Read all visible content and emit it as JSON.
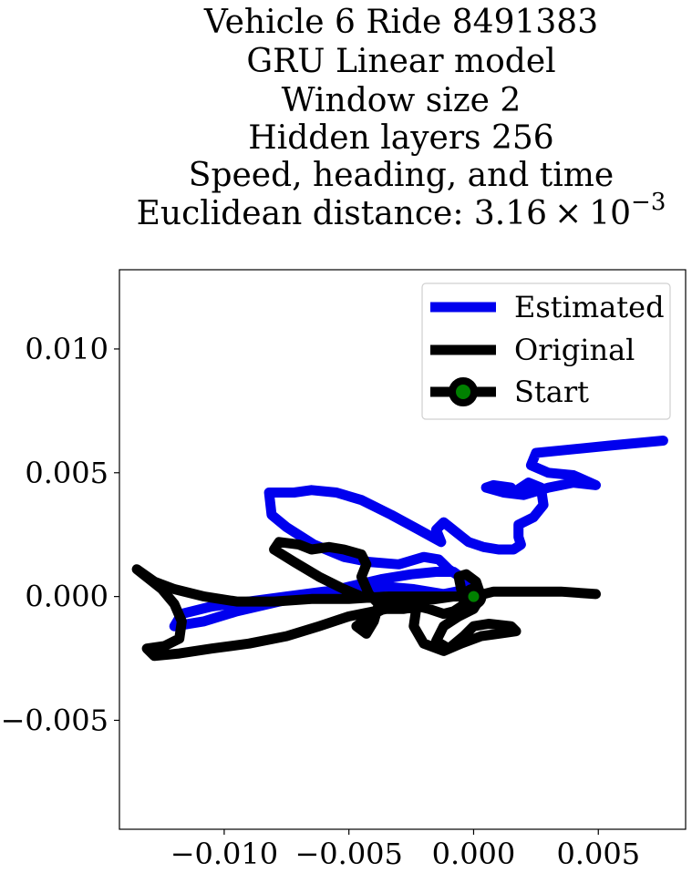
{
  "chart_data": {
    "type": "line",
    "title_lines": [
      "Vehicle 6 Ride 8491383",
      "GRU Linear model",
      "Window size 2",
      "Hidden layers 256",
      "Speed, heading, and time"
    ],
    "title_distance_prefix": "Euclidean distance: 3.16",
    "title_distance_times": "×",
    "title_distance_base": "10",
    "title_distance_exponent": "−3",
    "xlabel": "",
    "ylabel": "",
    "xlim": [
      -0.0142,
      0.0085
    ],
    "ylim": [
      -0.0094,
      0.0132
    ],
    "x_ticks": [
      {
        "value": -0.01,
        "label": "−0.010"
      },
      {
        "value": -0.005,
        "label": "−0.005"
      },
      {
        "value": 0.0,
        "label": "0.000"
      },
      {
        "value": 0.005,
        "label": "0.005"
      }
    ],
    "y_ticks": [
      {
        "value": 0.01,
        "label": "0.010"
      },
      {
        "value": 0.005,
        "label": "0.005"
      },
      {
        "value": 0.0,
        "label": "0.000"
      },
      {
        "value": -0.005,
        "label": "−0.005"
      }
    ],
    "grid": false,
    "legend_position": "top-right",
    "series": [
      {
        "name": "Estimated",
        "color": "#0000ee",
        "role": "line",
        "points": [
          [
            0.0076,
            0.0063
          ],
          [
            0.0055,
            0.0061
          ],
          [
            0.0035,
            0.0059
          ],
          [
            0.0025,
            0.0058
          ],
          [
            0.0023,
            0.0053
          ],
          [
            0.003,
            0.005
          ],
          [
            0.004,
            0.0049
          ],
          [
            0.0049,
            0.0045
          ],
          [
            0.004,
            0.0046
          ],
          [
            0.003,
            0.0044
          ],
          [
            0.002,
            0.0041
          ],
          [
            0.0012,
            0.0042
          ],
          [
            0.0005,
            0.0044
          ],
          [
            0.0008,
            0.0045
          ],
          [
            0.0015,
            0.0044
          ],
          [
            0.0016,
            0.0042
          ],
          [
            0.0022,
            0.0046
          ],
          [
            0.0027,
            0.0044
          ],
          [
            0.0028,
            0.0037
          ],
          [
            0.0024,
            0.0032
          ],
          [
            0.0018,
            0.0029
          ],
          [
            0.0018,
            0.0024
          ],
          [
            0.0019,
            0.0021
          ],
          [
            0.0016,
            0.0019
          ],
          [
            0.001,
            0.0019
          ],
          [
            0.0004,
            0.002
          ],
          [
            -0.0002,
            0.0022
          ],
          [
            -0.0007,
            0.0026
          ],
          [
            -0.0012,
            0.003
          ],
          [
            -0.0015,
            0.0027
          ],
          [
            -0.0013,
            0.0022
          ],
          [
            -0.0022,
            0.0027
          ],
          [
            -0.0033,
            0.0033
          ],
          [
            -0.0045,
            0.0039
          ],
          [
            -0.0055,
            0.0042
          ],
          [
            -0.0065,
            0.0043
          ],
          [
            -0.0072,
            0.0042
          ],
          [
            -0.0082,
            0.0042
          ],
          [
            -0.0081,
            0.0033
          ],
          [
            -0.0075,
            0.0028
          ],
          [
            -0.0064,
            0.0021
          ],
          [
            -0.0052,
            0.0016
          ],
          [
            -0.0042,
            0.0014
          ],
          [
            -0.003,
            0.0013
          ],
          [
            -0.002,
            0.0016
          ],
          [
            -0.0014,
            0.0015
          ],
          [
            -0.001,
            0.0011
          ],
          [
            -0.0004,
            0.0007
          ],
          [
            -0.0002,
            0.0003
          ],
          [
            -0.0012,
            0.0001
          ],
          [
            -0.0024,
            0.0003
          ],
          [
            -0.0035,
            0.0004
          ],
          [
            -0.0047,
            0.0003
          ],
          [
            -0.006,
            0.0002
          ],
          [
            -0.0075,
            0.0
          ],
          [
            -0.009,
            -0.0002
          ],
          [
            -0.0105,
            -0.0004
          ],
          [
            -0.0117,
            -0.0007
          ],
          [
            -0.012,
            -0.0012
          ],
          [
            -0.0108,
            -0.001
          ],
          [
            -0.0095,
            -0.0006
          ],
          [
            -0.0078,
            -0.0002
          ],
          [
            -0.0062,
            0.0001
          ],
          [
            -0.005,
            0.0004
          ],
          [
            -0.0037,
            0.0007
          ],
          [
            -0.0025,
            0.0009
          ],
          [
            -0.0015,
            0.001
          ],
          [
            -0.0008,
            0.001
          ],
          [
            -0.0004,
            0.0007
          ]
        ]
      },
      {
        "name": "Original",
        "color": "#000000",
        "role": "line",
        "points": [
          [
            0.0049,
            0.0001
          ],
          [
            0.0035,
            0.0002
          ],
          [
            0.002,
            0.0002
          ],
          [
            0.0008,
            0.0002
          ],
          [
            0.0,
            0.0
          ],
          [
            -0.0005,
            0.0003
          ],
          [
            -0.0006,
            0.0008
          ],
          [
            -0.0003,
            0.0009
          ],
          [
            0.0001,
            0.0006
          ],
          [
            0.0003,
            0.0
          ],
          [
            0.0,
            -0.0005
          ],
          [
            -0.0006,
            -0.0008
          ],
          [
            -0.0012,
            -0.0012
          ],
          [
            -0.0015,
            -0.0018
          ],
          [
            -0.001,
            -0.0021
          ],
          [
            -0.0004,
            -0.0016
          ],
          [
            0.0,
            -0.0012
          ],
          [
            0.0006,
            -0.0011
          ],
          [
            0.0015,
            -0.0012
          ],
          [
            0.0017,
            -0.0014
          ],
          [
            0.001,
            -0.0015
          ],
          [
            0.0003,
            -0.0016
          ],
          [
            -0.0005,
            -0.0019
          ],
          [
            -0.0012,
            -0.0022
          ],
          [
            -0.002,
            -0.0019
          ],
          [
            -0.0024,
            -0.0012
          ],
          [
            -0.0023,
            -0.0005
          ],
          [
            -0.002,
            0.0
          ],
          [
            -0.003,
            -0.0002
          ],
          [
            -0.004,
            -0.0007
          ],
          [
            -0.0047,
            -0.0012
          ],
          [
            -0.0043,
            -0.0015
          ],
          [
            -0.004,
            -0.001
          ],
          [
            -0.0038,
            -0.0003
          ],
          [
            -0.0042,
            0.0001
          ],
          [
            -0.0045,
            0.0008
          ],
          [
            -0.0043,
            0.0013
          ],
          [
            -0.0045,
            0.0017
          ],
          [
            -0.0052,
            0.0019
          ],
          [
            -0.0058,
            0.002
          ],
          [
            -0.0065,
            0.0019
          ],
          [
            -0.007,
            0.0021
          ],
          [
            -0.0078,
            0.0022
          ],
          [
            -0.008,
            0.0019
          ],
          [
            -0.0072,
            0.0014
          ],
          [
            -0.0062,
            0.0008
          ],
          [
            -0.0052,
            0.0003
          ],
          [
            -0.0045,
            0.0
          ],
          [
            -0.0038,
            -0.0001
          ],
          [
            -0.003,
            -0.0002
          ],
          [
            -0.0022,
            -0.0002
          ],
          [
            -0.0015,
            -0.0001
          ],
          [
            -0.0008,
            0.0
          ],
          [
            -0.0003,
            0.0
          ],
          [
            -0.0008,
            0.0
          ],
          [
            -0.002,
            0.0
          ],
          [
            -0.0035,
            0.0
          ],
          [
            -0.005,
            -0.0001
          ],
          [
            -0.0065,
            -0.0001
          ],
          [
            -0.008,
            -0.0002
          ],
          [
            -0.0095,
            -0.0002
          ],
          [
            -0.0108,
            0.0
          ],
          [
            -0.012,
            0.0003
          ],
          [
            -0.0128,
            0.0006
          ],
          [
            -0.0135,
            0.0011
          ],
          [
            -0.013,
            0.0007
          ],
          [
            -0.0125,
            0.0003
          ],
          [
            -0.012,
            -0.0003
          ],
          [
            -0.0117,
            -0.001
          ],
          [
            -0.0118,
            -0.0017
          ],
          [
            -0.0124,
            -0.002
          ],
          [
            -0.0131,
            -0.0021
          ],
          [
            -0.0128,
            -0.0024
          ],
          [
            -0.0118,
            -0.0023
          ],
          [
            -0.0105,
            -0.0021
          ],
          [
            -0.009,
            -0.0019
          ],
          [
            -0.0075,
            -0.0016
          ],
          [
            -0.0062,
            -0.0012
          ],
          [
            -0.005,
            -0.0008
          ],
          [
            -0.004,
            -0.0006
          ],
          [
            -0.0035,
            -0.0005
          ],
          [
            -0.0028,
            -0.0005
          ],
          [
            -0.0022,
            -0.0004
          ],
          [
            -0.0018,
            -0.0005
          ],
          [
            -0.0012,
            -0.0007
          ],
          [
            -0.0008,
            -0.0006
          ],
          [
            -0.0005,
            -0.0004
          ],
          [
            -0.0003,
            -0.0002
          ]
        ]
      },
      {
        "name": "Start",
        "color": "#000000",
        "marker_fill": "#008000",
        "role": "marker",
        "points": [
          [
            0.0,
            0.0
          ]
        ]
      }
    ]
  }
}
